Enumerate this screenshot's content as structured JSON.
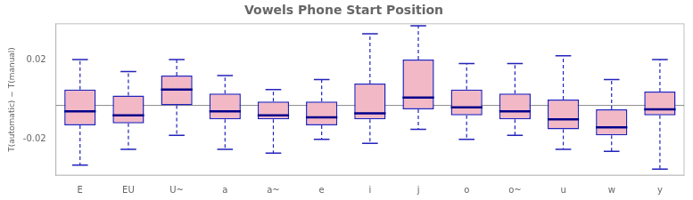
{
  "chart_data": {
    "type": "box",
    "title": "Vowels Phone Start Position",
    "ylabel": "T(automatic) − T(manual)",
    "categories": [
      "E",
      "EU",
      "U~",
      "a",
      "a~",
      "e",
      "i",
      "j",
      "o",
      "o~",
      "u",
      "w",
      "y"
    ],
    "whislo": [
      -0.033,
      -0.025,
      -0.018,
      -0.025,
      -0.027,
      -0.02,
      -0.022,
      -0.015,
      -0.02,
      -0.018,
      -0.025,
      -0.026,
      -0.035
    ],
    "q1": [
      -0.013,
      -0.012,
      -0.003,
      -0.01,
      -0.01,
      -0.013,
      -0.01,
      -0.005,
      -0.008,
      -0.01,
      -0.015,
      -0.018,
      -0.008
    ],
    "med": [
      -0.006,
      -0.008,
      0.005,
      -0.006,
      -0.008,
      -0.009,
      -0.007,
      0.001,
      -0.004,
      -0.006,
      -0.01,
      -0.014,
      -0.005
    ],
    "q3": [
      0.005,
      0.002,
      0.012,
      0.003,
      -0.001,
      -0.001,
      0.008,
      0.02,
      0.005,
      0.003,
      0.0,
      -0.005,
      0.004
    ],
    "whishi": [
      0.02,
      0.014,
      0.02,
      0.012,
      0.005,
      0.01,
      0.033,
      0.037,
      0.018,
      0.018,
      0.022,
      0.01,
      0.02
    ],
    "ylim": [
      -0.038,
      0.038
    ],
    "yticks": [
      -0.02,
      {
        "value": 0.0,
        "label": ""
      },
      0.02
    ],
    "grid": false,
    "color": "#f2b8c6",
    "edge_color": "#2222bb",
    "median_color": "#00008b",
    "whisker_color": "#2222bb",
    "cap_color": "#2222bb",
    "reference_line": {
      "y": -0.003,
      "color": "#888888"
    }
  }
}
